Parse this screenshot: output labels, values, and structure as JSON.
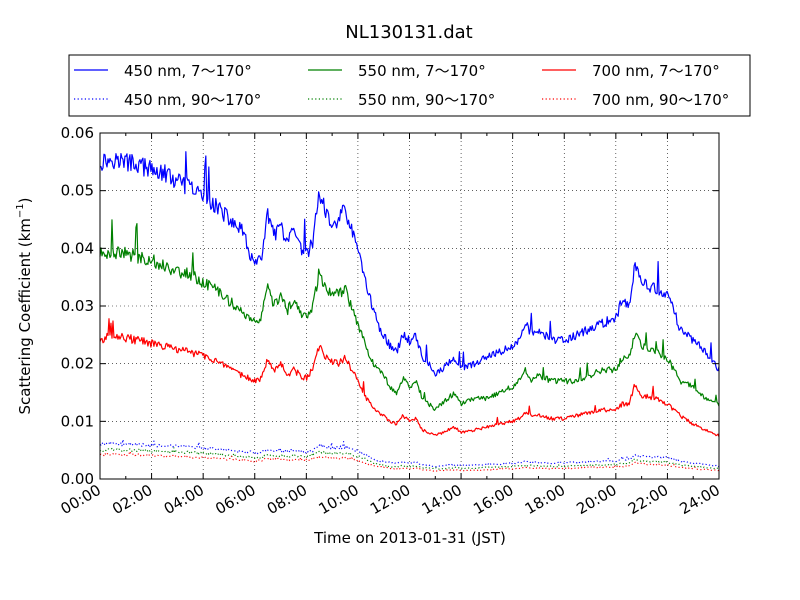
{
  "chart_data": {
    "type": "line",
    "title": "NL130131.dat",
    "xlabel": "Time on 2013-01-31 (JST)",
    "ylabel": "Scattering Coefficient (km",
    "ylabel_exponent": "−1",
    "ylabel_close": ")",
    "xlim": [
      "00:00",
      "24:00"
    ],
    "ylim": [
      0,
      0.06
    ],
    "grid": true,
    "grid_style": "dotted",
    "legend_position": "top (above plot)",
    "x_ticks": [
      "00:00",
      "02:00",
      "04:00",
      "06:00",
      "08:00",
      "10:00",
      "12:00",
      "14:00",
      "16:00",
      "18:00",
      "20:00",
      "22:00",
      "24:00"
    ],
    "y_ticks": [
      "0.00",
      "0.01",
      "0.02",
      "0.03",
      "0.04",
      "0.05",
      "0.06"
    ],
    "legend": [
      {
        "label": "450 nm, 7～170°",
        "color": "#0000ff",
        "style": "solid"
      },
      {
        "label": "550 nm, 7～170°",
        "color": "#008000",
        "style": "solid"
      },
      {
        "label": "700 nm, 7～170°",
        "color": "#ff0000",
        "style": "solid"
      },
      {
        "label": "450 nm, 90～170°",
        "color": "#0000ff",
        "style": "dotted"
      },
      {
        "label": "550 nm, 90～170°",
        "color": "#008000",
        "style": "dotted"
      },
      {
        "label": "700 nm, 90～170°",
        "color": "#ff0000",
        "style": "dotted"
      }
    ],
    "x_hours": [
      0,
      0.5,
      1,
      1.5,
      2,
      2.5,
      3,
      3.5,
      4,
      4.5,
      5,
      5.5,
      5.75,
      6,
      6.25,
      6.5,
      6.75,
      7,
      7.25,
      7.5,
      7.75,
      8,
      8.25,
      8.5,
      8.75,
      9,
      9.25,
      9.5,
      9.75,
      10,
      10.25,
      10.5,
      10.75,
      11,
      11.25,
      11.5,
      11.75,
      12,
      12.25,
      12.5,
      12.75,
      13,
      13.25,
      13.5,
      13.75,
      14,
      14.5,
      15,
      15.5,
      16,
      16.25,
      16.5,
      16.75,
      17,
      17.5,
      18,
      18.5,
      19,
      19.5,
      20,
      20.25,
      20.5,
      20.75,
      21,
      21.5,
      22,
      22.25,
      22.5,
      23,
      23.5,
      24
    ],
    "series": [
      {
        "name": "450 nm, 7～170°",
        "color": "#0000ff",
        "style": "solid",
        "values": [
          0.055,
          0.0555,
          0.055,
          0.0545,
          0.0535,
          0.053,
          0.0515,
          0.0505,
          0.049,
          0.0475,
          0.045,
          0.043,
          0.04,
          0.037,
          0.038,
          0.046,
          0.042,
          0.044,
          0.0405,
          0.043,
          0.04,
          0.039,
          0.041,
          0.05,
          0.046,
          0.044,
          0.045,
          0.047,
          0.043,
          0.04,
          0.035,
          0.031,
          0.027,
          0.025,
          0.023,
          0.022,
          0.025,
          0.024,
          0.025,
          0.021,
          0.02,
          0.018,
          0.019,
          0.02,
          0.021,
          0.019,
          0.02,
          0.021,
          0.022,
          0.023,
          0.024,
          0.027,
          0.025,
          0.026,
          0.024,
          0.024,
          0.025,
          0.026,
          0.027,
          0.028,
          0.031,
          0.03,
          0.037,
          0.034,
          0.033,
          0.032,
          0.029,
          0.026,
          0.024,
          0.022,
          0.019
        ]
      },
      {
        "name": "550 nm, 7～170°",
        "color": "#008000",
        "style": "solid",
        "values": [
          0.039,
          0.0395,
          0.039,
          0.0385,
          0.038,
          0.037,
          0.036,
          0.0355,
          0.034,
          0.033,
          0.031,
          0.029,
          0.028,
          0.027,
          0.028,
          0.033,
          0.03,
          0.032,
          0.029,
          0.031,
          0.029,
          0.028,
          0.03,
          0.036,
          0.033,
          0.032,
          0.032,
          0.033,
          0.03,
          0.027,
          0.024,
          0.021,
          0.019,
          0.018,
          0.016,
          0.015,
          0.0175,
          0.016,
          0.017,
          0.014,
          0.013,
          0.012,
          0.013,
          0.014,
          0.015,
          0.013,
          0.014,
          0.014,
          0.015,
          0.016,
          0.017,
          0.019,
          0.017,
          0.018,
          0.017,
          0.017,
          0.017,
          0.018,
          0.019,
          0.019,
          0.021,
          0.021,
          0.025,
          0.023,
          0.022,
          0.021,
          0.019,
          0.017,
          0.016,
          0.014,
          0.013
        ]
      },
      {
        "name": "700 nm, 7～170°",
        "color": "#ff0000",
        "style": "solid",
        "values": [
          0.024,
          0.025,
          0.0245,
          0.024,
          0.0235,
          0.023,
          0.0225,
          0.022,
          0.0215,
          0.0205,
          0.019,
          0.018,
          0.0175,
          0.017,
          0.0175,
          0.021,
          0.019,
          0.02,
          0.018,
          0.019,
          0.018,
          0.0175,
          0.019,
          0.023,
          0.021,
          0.0205,
          0.02,
          0.021,
          0.019,
          0.017,
          0.0145,
          0.013,
          0.0115,
          0.011,
          0.01,
          0.0095,
          0.011,
          0.01,
          0.0105,
          0.0085,
          0.008,
          0.0075,
          0.008,
          0.0085,
          0.009,
          0.008,
          0.0085,
          0.009,
          0.0095,
          0.01,
          0.0105,
          0.0115,
          0.011,
          0.011,
          0.0105,
          0.0105,
          0.011,
          0.0115,
          0.012,
          0.012,
          0.013,
          0.013,
          0.0165,
          0.0145,
          0.014,
          0.013,
          0.012,
          0.011,
          0.0095,
          0.0085,
          0.0075
        ]
      },
      {
        "name": "450 nm, 90～170°",
        "color": "#0000ff",
        "style": "dotted",
        "values": [
          0.006,
          0.0062,
          0.006,
          0.006,
          0.0059,
          0.0058,
          0.0057,
          0.0055,
          0.0054,
          0.0052,
          0.005,
          0.0048,
          0.0047,
          0.0045,
          0.0046,
          0.0052,
          0.0049,
          0.005,
          0.0048,
          0.005,
          0.0048,
          0.0047,
          0.0049,
          0.0058,
          0.0055,
          0.0054,
          0.0054,
          0.0056,
          0.0052,
          0.0048,
          0.0042,
          0.0037,
          0.0032,
          0.003,
          0.0028,
          0.0027,
          0.0029,
          0.0028,
          0.0029,
          0.0025,
          0.0024,
          0.0022,
          0.0023,
          0.0024,
          0.0025,
          0.0023,
          0.0024,
          0.0025,
          0.0026,
          0.0027,
          0.0028,
          0.003,
          0.0029,
          0.0029,
          0.0028,
          0.0028,
          0.0029,
          0.003,
          0.003,
          0.0031,
          0.0034,
          0.0034,
          0.0042,
          0.0039,
          0.0038,
          0.0037,
          0.0034,
          0.003,
          0.0028,
          0.0025,
          0.0022
        ]
      },
      {
        "name": "550 nm, 90～170°",
        "color": "#008000",
        "style": "dotted",
        "values": [
          0.005,
          0.0051,
          0.005,
          0.005,
          0.0049,
          0.0048,
          0.0047,
          0.0046,
          0.0045,
          0.0043,
          0.0041,
          0.0039,
          0.0038,
          0.0037,
          0.0038,
          0.0043,
          0.004,
          0.0041,
          0.0039,
          0.0041,
          0.0039,
          0.0038,
          0.004,
          0.0047,
          0.0045,
          0.0044,
          0.0044,
          0.0045,
          0.0042,
          0.0039,
          0.0034,
          0.003,
          0.0026,
          0.0024,
          0.0022,
          0.0021,
          0.0023,
          0.0022,
          0.0023,
          0.002,
          0.0019,
          0.0018,
          0.0018,
          0.0019,
          0.002,
          0.0018,
          0.0019,
          0.002,
          0.0021,
          0.0022,
          0.0022,
          0.0024,
          0.0023,
          0.0023,
          0.0022,
          0.0022,
          0.0023,
          0.0024,
          0.0024,
          0.0025,
          0.0027,
          0.0027,
          0.0034,
          0.0031,
          0.003,
          0.0029,
          0.0027,
          0.0024,
          0.0022,
          0.002,
          0.0018
        ]
      },
      {
        "name": "700 nm, 90～170°",
        "color": "#ff0000",
        "style": "dotted",
        "values": [
          0.0042,
          0.0043,
          0.0042,
          0.0042,
          0.0041,
          0.004,
          0.0039,
          0.0038,
          0.0037,
          0.0036,
          0.0034,
          0.0033,
          0.0032,
          0.0031,
          0.0032,
          0.0036,
          0.0034,
          0.0035,
          0.0033,
          0.0034,
          0.0033,
          0.0032,
          0.0034,
          0.0039,
          0.0037,
          0.0036,
          0.0036,
          0.0037,
          0.0035,
          0.0032,
          0.0028,
          0.0025,
          0.0022,
          0.002,
          0.0018,
          0.0017,
          0.0019,
          0.0018,
          0.0019,
          0.0016,
          0.0015,
          0.0014,
          0.0015,
          0.0015,
          0.0016,
          0.0015,
          0.0015,
          0.0016,
          0.0017,
          0.0018,
          0.0018,
          0.002,
          0.0019,
          0.0019,
          0.0018,
          0.0018,
          0.0019,
          0.002,
          0.002,
          0.0021,
          0.0022,
          0.0022,
          0.0028,
          0.0026,
          0.0025,
          0.0024,
          0.0022,
          0.002,
          0.0018,
          0.0016,
          0.0015
        ]
      }
    ]
  }
}
